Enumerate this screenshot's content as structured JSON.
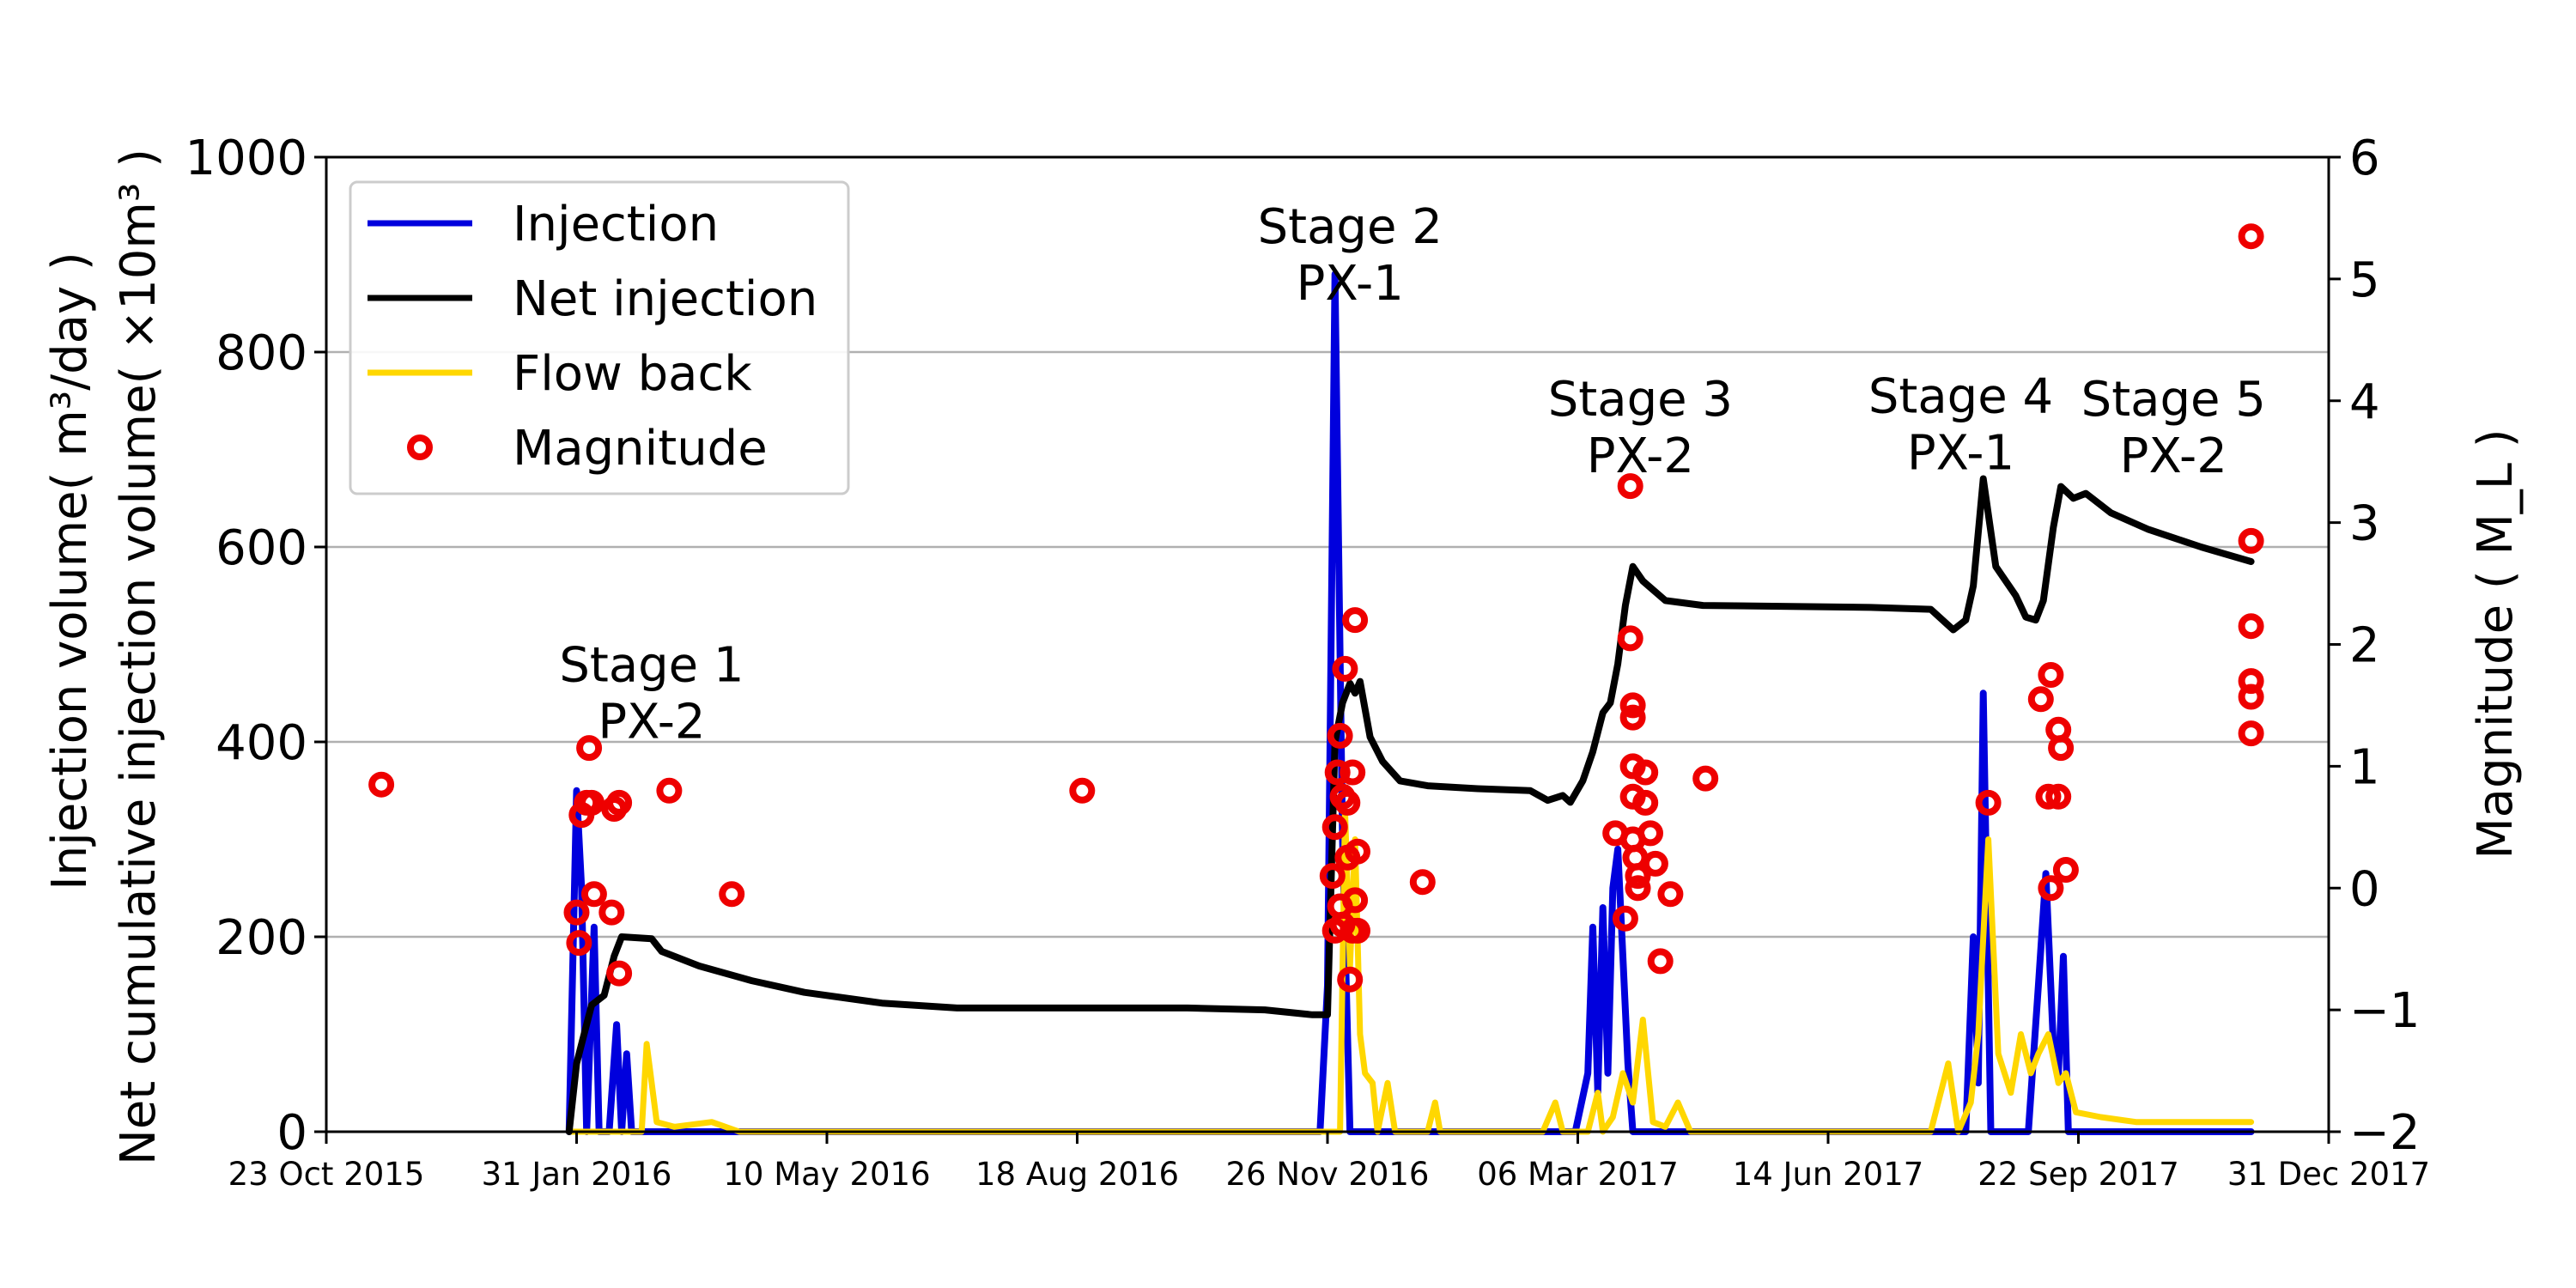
{
  "chart_data": {
    "type": "line",
    "title": "",
    "x_axis": {
      "label": "",
      "type": "date",
      "range": [
        "2015-10-23",
        "2017-12-31"
      ],
      "tick_labels": [
        "23 Oct 2015",
        "31 Jan 2016",
        "10 May 2016",
        "18 Aug 2016",
        "26 Nov 2016",
        "06 Mar 2017",
        "14 Jun 2017",
        "22 Sep 2017",
        "31 Dec 2017"
      ]
    },
    "y_axis_left": {
      "label_line1": "Injection volume( m³/day )",
      "label_line2": "Net cumulative injection volume( ×10m³ )",
      "range": [
        0,
        1000
      ],
      "ticks": [
        "0",
        "200",
        "400",
        "600",
        "800",
        "1000"
      ]
    },
    "y_axis_right": {
      "label": "Magnitude ( M_L )",
      "range": [
        -2,
        6
      ],
      "ticks": [
        "−2",
        "−1",
        "0",
        "1",
        "2",
        "3",
        "4",
        "5",
        "6"
      ]
    },
    "grid": "horizontal",
    "legend": {
      "position": "top-left",
      "entries": [
        {
          "label": "Injection",
          "color": "#0000dd",
          "kind": "line"
        },
        {
          "label": "Net injection",
          "color": "#000000",
          "kind": "line"
        },
        {
          "label": "Flow back",
          "color": "#ffd700",
          "kind": "line"
        },
        {
          "label": "Magnitude",
          "color": "#ee0000",
          "kind": "marker"
        }
      ]
    },
    "annotations": [
      {
        "line1": "Stage 1",
        "line2": "PX-2",
        "date": "2016-03-01",
        "y": 462
      },
      {
        "line1": "Stage 2",
        "line2": "PX-1",
        "date": "2016-12-05",
        "y": 912
      },
      {
        "line1": "Stage 3",
        "line2": "PX-2",
        "date": "2017-03-31",
        "y": 735
      },
      {
        "line1": "Stage 4",
        "line2": "PX-1",
        "date": "2017-08-06",
        "y": 738
      },
      {
        "line1": "Stage 5",
        "line2": "PX-2",
        "date": "2017-10-30",
        "y": 735
      }
    ],
    "series": [
      {
        "name": "Injection",
        "color": "#0000dd",
        "axis": "left",
        "points": [
          [
            "2016-01-28",
            0
          ],
          [
            "2016-01-31",
            350
          ],
          [
            "2016-02-02",
            250
          ],
          [
            "2016-02-04",
            0
          ],
          [
            "2016-02-07",
            210
          ],
          [
            "2016-02-09",
            0
          ],
          [
            "2016-02-13",
            0
          ],
          [
            "2016-02-16",
            110
          ],
          [
            "2016-02-18",
            0
          ],
          [
            "2016-02-20",
            80
          ],
          [
            "2016-02-22",
            0
          ],
          [
            "2016-03-01",
            0
          ],
          [
            "2016-08-01",
            0
          ],
          [
            "2016-11-23",
            0
          ],
          [
            "2016-11-26",
            150
          ],
          [
            "2016-11-29",
            880
          ],
          [
            "2016-12-02",
            300
          ],
          [
            "2016-12-05",
            0
          ],
          [
            "2017-03-05",
            0
          ],
          [
            "2017-03-10",
            60
          ],
          [
            "2017-03-12",
            210
          ],
          [
            "2017-03-14",
            40
          ],
          [
            "2017-03-16",
            230
          ],
          [
            "2017-03-18",
            60
          ],
          [
            "2017-03-20",
            250
          ],
          [
            "2017-03-22",
            290
          ],
          [
            "2017-03-24",
            180
          ],
          [
            "2017-03-26",
            70
          ],
          [
            "2017-03-28",
            0
          ],
          [
            "2017-08-01",
            0
          ],
          [
            "2017-08-08",
            0
          ],
          [
            "2017-08-11",
            200
          ],
          [
            "2017-08-13",
            50
          ],
          [
            "2017-08-15",
            450
          ],
          [
            "2017-08-18",
            0
          ],
          [
            "2017-09-02",
            0
          ],
          [
            "2017-09-06",
            150
          ],
          [
            "2017-09-09",
            265
          ],
          [
            "2017-09-12",
            90
          ],
          [
            "2017-09-14",
            60
          ],
          [
            "2017-09-16",
            180
          ],
          [
            "2017-09-18",
            0
          ],
          [
            "2017-11-30",
            0
          ]
        ]
      },
      {
        "name": "Net injection",
        "color": "#000000",
        "axis": "left",
        "points": [
          [
            "2016-01-28",
            0
          ],
          [
            "2016-01-31",
            70
          ],
          [
            "2016-02-03",
            100
          ],
          [
            "2016-02-06",
            130
          ],
          [
            "2016-02-11",
            140
          ],
          [
            "2016-02-15",
            180
          ],
          [
            "2016-02-18",
            200
          ],
          [
            "2016-03-01",
            198
          ],
          [
            "2016-03-05",
            185
          ],
          [
            "2016-03-20",
            170
          ],
          [
            "2016-04-10",
            155
          ],
          [
            "2016-05-01",
            143
          ],
          [
            "2016-06-01",
            132
          ],
          [
            "2016-07-01",
            127
          ],
          [
            "2016-08-01",
            127
          ],
          [
            "2016-09-01",
            127
          ],
          [
            "2016-10-01",
            127
          ],
          [
            "2016-11-01",
            125
          ],
          [
            "2016-11-20",
            120
          ],
          [
            "2016-11-26",
            120
          ],
          [
            "2016-11-29",
            400
          ],
          [
            "2016-12-02",
            440
          ],
          [
            "2016-12-05",
            460
          ],
          [
            "2016-12-07",
            450
          ],
          [
            "2016-12-09",
            462
          ],
          [
            "2016-12-13",
            405
          ],
          [
            "2016-12-18",
            380
          ],
          [
            "2016-12-25",
            360
          ],
          [
            "2017-01-05",
            355
          ],
          [
            "2017-01-25",
            352
          ],
          [
            "2017-02-15",
            350
          ],
          [
            "2017-02-22",
            340
          ],
          [
            "2017-02-28",
            345
          ],
          [
            "2017-03-03",
            338
          ],
          [
            "2017-03-08",
            360
          ],
          [
            "2017-03-12",
            390
          ],
          [
            "2017-03-16",
            430
          ],
          [
            "2017-03-19",
            440
          ],
          [
            "2017-03-22",
            480
          ],
          [
            "2017-03-25",
            540
          ],
          [
            "2017-03-28",
            580
          ],
          [
            "2017-04-01",
            565
          ],
          [
            "2017-04-10",
            545
          ],
          [
            "2017-04-25",
            540
          ],
          [
            "2017-07-01",
            538
          ],
          [
            "2017-07-25",
            536
          ],
          [
            "2017-08-03",
            515
          ],
          [
            "2017-08-08",
            525
          ],
          [
            "2017-08-11",
            560
          ],
          [
            "2017-08-15",
            670
          ],
          [
            "2017-08-20",
            580
          ],
          [
            "2017-08-28",
            550
          ],
          [
            "2017-09-01",
            528
          ],
          [
            "2017-09-05",
            525
          ],
          [
            "2017-09-08",
            545
          ],
          [
            "2017-09-12",
            620
          ],
          [
            "2017-09-15",
            662
          ],
          [
            "2017-09-20",
            650
          ],
          [
            "2017-09-25",
            655
          ],
          [
            "2017-10-05",
            635
          ],
          [
            "2017-10-20",
            618
          ],
          [
            "2017-11-10",
            600
          ],
          [
            "2017-11-30",
            585
          ]
        ]
      },
      {
        "name": "Flow back",
        "color": "#ffd700",
        "axis": "left",
        "points": [
          [
            "2016-01-28",
            0
          ],
          [
            "2016-02-20",
            0
          ],
          [
            "2016-02-26",
            0
          ],
          [
            "2016-02-28",
            90
          ],
          [
            "2016-03-03",
            10
          ],
          [
            "2016-03-10",
            5
          ],
          [
            "2016-03-25",
            10
          ],
          [
            "2016-04-05",
            0
          ],
          [
            "2016-08-01",
            0
          ],
          [
            "2016-11-22",
            0
          ],
          [
            "2016-11-28",
            0
          ],
          [
            "2016-12-01",
            0
          ],
          [
            "2016-12-03",
            330
          ],
          [
            "2016-12-05",
            170
          ],
          [
            "2016-12-07",
            300
          ],
          [
            "2016-12-09",
            100
          ],
          [
            "2016-12-11",
            60
          ],
          [
            "2016-12-14",
            50
          ],
          [
            "2016-12-16",
            0
          ],
          [
            "2016-12-20",
            50
          ],
          [
            "2016-12-23",
            0
          ],
          [
            "2017-01-05",
            0
          ],
          [
            "2017-01-08",
            30
          ],
          [
            "2017-01-10",
            0
          ],
          [
            "2017-02-20",
            0
          ],
          [
            "2017-02-25",
            30
          ],
          [
            "2017-02-28",
            0
          ],
          [
            "2017-03-10",
            0
          ],
          [
            "2017-03-14",
            40
          ],
          [
            "2017-03-16",
            0
          ],
          [
            "2017-03-20",
            15
          ],
          [
            "2017-03-24",
            60
          ],
          [
            "2017-03-28",
            30
          ],
          [
            "2017-04-01",
            115
          ],
          [
            "2017-04-05",
            10
          ],
          [
            "2017-04-10",
            5
          ],
          [
            "2017-04-15",
            30
          ],
          [
            "2017-04-20",
            0
          ],
          [
            "2017-06-01",
            0
          ],
          [
            "2017-07-25",
            0
          ],
          [
            "2017-08-01",
            70
          ],
          [
            "2017-08-05",
            0
          ],
          [
            "2017-08-10",
            30
          ],
          [
            "2017-08-13",
            100
          ],
          [
            "2017-08-17",
            300
          ],
          [
            "2017-08-21",
            80
          ],
          [
            "2017-08-26",
            40
          ],
          [
            "2017-08-30",
            100
          ],
          [
            "2017-09-03",
            60
          ],
          [
            "2017-09-06",
            80
          ],
          [
            "2017-09-10",
            100
          ],
          [
            "2017-09-14",
            50
          ],
          [
            "2017-09-17",
            60
          ],
          [
            "2017-09-21",
            20
          ],
          [
            "2017-10-01",
            15
          ],
          [
            "2017-10-15",
            10
          ],
          [
            "2017-11-30",
            10
          ]
        ]
      },
      {
        "name": "Magnitude",
        "color": "#ee0000",
        "axis": "right",
        "marker": "ring",
        "points": [
          [
            "2015-11-14",
            0.85
          ],
          [
            "2016-01-31",
            -0.2
          ],
          [
            "2016-02-01",
            -0.45
          ],
          [
            "2016-02-02",
            0.6
          ],
          [
            "2016-02-04",
            0.7
          ],
          [
            "2016-02-05",
            1.15
          ],
          [
            "2016-02-06",
            0.7
          ],
          [
            "2016-02-07",
            -0.05
          ],
          [
            "2016-02-14",
            -0.2
          ],
          [
            "2016-02-15",
            0.65
          ],
          [
            "2016-02-17",
            0.7
          ],
          [
            "2016-02-17",
            -0.7
          ],
          [
            "2016-03-08",
            0.8
          ],
          [
            "2016-04-02",
            -0.05
          ],
          [
            "2016-08-20",
            0.8
          ],
          [
            "2016-11-28",
            0.1
          ],
          [
            "2016-11-29",
            -0.35
          ],
          [
            "2016-11-29",
            0.5
          ],
          [
            "2016-11-30",
            0.95
          ],
          [
            "2016-12-01",
            1.25
          ],
          [
            "2016-12-01",
            -0.15
          ],
          [
            "2016-12-02",
            0.75
          ],
          [
            "2016-12-02",
            -0.3
          ],
          [
            "2016-12-03",
            1.8
          ],
          [
            "2016-12-04",
            0.7
          ],
          [
            "2016-12-04",
            0.25
          ],
          [
            "2016-12-05",
            -0.75
          ],
          [
            "2016-12-06",
            0.95
          ],
          [
            "2016-12-06",
            -0.35
          ],
          [
            "2016-12-07",
            2.2
          ],
          [
            "2016-12-07",
            -0.1
          ],
          [
            "2016-12-08",
            0.3
          ],
          [
            "2016-12-08",
            -0.35
          ],
          [
            "2017-01-03",
            0.05
          ],
          [
            "2017-03-21",
            0.45
          ],
          [
            "2017-03-25",
            -0.25
          ],
          [
            "2017-03-27",
            3.3
          ],
          [
            "2017-03-27",
            2.05
          ],
          [
            "2017-03-28",
            1.5
          ],
          [
            "2017-03-28",
            1.4
          ],
          [
            "2017-03-28",
            1.0
          ],
          [
            "2017-03-28",
            0.75
          ],
          [
            "2017-03-28",
            0.4
          ],
          [
            "2017-03-29",
            0.25
          ],
          [
            "2017-03-30",
            0.1
          ],
          [
            "2017-03-30",
            0.0
          ],
          [
            "2017-04-02",
            0.95
          ],
          [
            "2017-04-02",
            0.7
          ],
          [
            "2017-04-04",
            0.45
          ],
          [
            "2017-04-06",
            0.2
          ],
          [
            "2017-04-08",
            -0.6
          ],
          [
            "2017-04-12",
            -0.05
          ],
          [
            "2017-04-26",
            0.9
          ],
          [
            "2017-08-17",
            0.7
          ],
          [
            "2017-09-07",
            1.55
          ],
          [
            "2017-09-10",
            0.75
          ],
          [
            "2017-09-11",
            1.75
          ],
          [
            "2017-09-11",
            0.0
          ],
          [
            "2017-09-14",
            0.75
          ],
          [
            "2017-09-14",
            1.3
          ],
          [
            "2017-09-15",
            1.15
          ],
          [
            "2017-09-17",
            0.15
          ],
          [
            "2017-11-30",
            5.35
          ],
          [
            "2017-11-30",
            2.85
          ],
          [
            "2017-11-30",
            2.15
          ],
          [
            "2017-11-30",
            1.7
          ],
          [
            "2017-11-30",
            1.57
          ],
          [
            "2017-11-30",
            1.27
          ]
        ]
      }
    ]
  }
}
